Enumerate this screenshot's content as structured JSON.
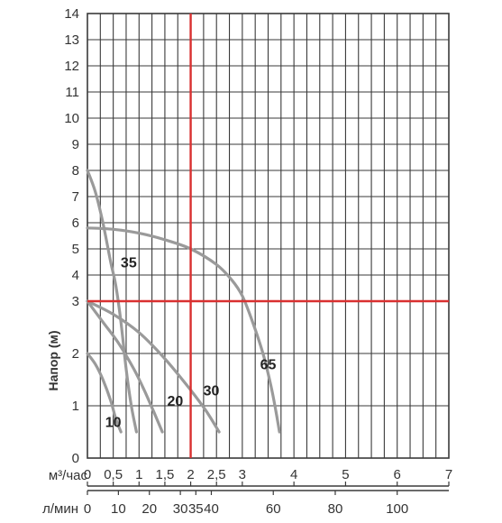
{
  "chart_data": {
    "type": "line",
    "ylabel": "Напор (м)",
    "y_scale": "piecewise: 0–3 m expanded (1 m per division), 3–14 m compressed",
    "y_ticks": [
      0,
      1,
      2,
      3,
      4,
      5,
      6,
      7,
      8,
      9,
      10,
      11,
      12,
      13,
      14
    ],
    "ylim": [
      0,
      14
    ],
    "x_axes": [
      {
        "label": "м³/час",
        "xlim": [
          0,
          7
        ],
        "ticks": [
          {
            "value": 0,
            "text": "0"
          },
          {
            "value": 0.5,
            "text": "0,5"
          },
          {
            "value": 1,
            "text": "1"
          },
          {
            "value": 1.5,
            "text": "1,5"
          },
          {
            "value": 2,
            "text": "2"
          },
          {
            "value": 2.5,
            "text": "2,5"
          },
          {
            "value": 3,
            "text": "3"
          },
          {
            "value": 4,
            "text": "4"
          },
          {
            "value": 5,
            "text": "5"
          },
          {
            "value": 6,
            "text": "6"
          },
          {
            "value": 7,
            "text": "7"
          }
        ]
      },
      {
        "label": "л/мин",
        "xlim": [
          0,
          116.7
        ],
        "ticks": [
          {
            "value": 0,
            "text": "0"
          },
          {
            "value": 10,
            "text": "10"
          },
          {
            "value": 20,
            "text": "20"
          },
          {
            "value": 30,
            "text": "30"
          },
          {
            "value": 35,
            "text": "35"
          },
          {
            "value": 40,
            "text": "40"
          },
          {
            "value": 60,
            "text": "60"
          },
          {
            "value": 80,
            "text": "80"
          },
          {
            "value": 100,
            "text": "100"
          }
        ]
      }
    ],
    "grid": true,
    "series": [
      {
        "name": "10",
        "x": [
          0,
          0.15,
          0.3,
          0.45,
          0.55,
          0.65
        ],
        "y": [
          2.0,
          1.8,
          1.5,
          1.1,
          0.75,
          0.5
        ]
      },
      {
        "name": "35",
        "x": [
          0,
          0.15,
          0.3,
          0.45,
          0.55,
          0.65,
          0.75,
          0.85,
          0.95
        ],
        "y": [
          8.0,
          7.2,
          6.0,
          4.5,
          3.6,
          2.6,
          1.7,
          1.0,
          0.5
        ]
      },
      {
        "name": "20",
        "x": [
          0,
          0.3,
          0.6,
          0.9,
          1.1,
          1.3,
          1.45
        ],
        "y": [
          3.0,
          2.6,
          2.2,
          1.7,
          1.3,
          0.85,
          0.5
        ]
      },
      {
        "name": "30",
        "x": [
          0,
          0.5,
          1.0,
          1.5,
          2.0,
          2.3,
          2.55
        ],
        "y": [
          3.0,
          2.75,
          2.4,
          1.9,
          1.3,
          0.9,
          0.5
        ]
      },
      {
        "name": "65",
        "x": [
          0,
          0.5,
          1.0,
          1.5,
          2.0,
          2.5,
          2.8,
          3.0,
          3.2,
          3.4,
          3.55,
          3.65,
          3.72
        ],
        "y": [
          5.8,
          5.75,
          5.6,
          5.35,
          5.0,
          4.4,
          3.8,
          3.2,
          2.6,
          2.0,
          1.4,
          0.9,
          0.5
        ]
      }
    ],
    "curve_label_positions": [
      {
        "name": "10",
        "x": 0.5,
        "y": 0.7
      },
      {
        "name": "35",
        "x": 0.8,
        "y": 4.5
      },
      {
        "name": "20",
        "x": 1.7,
        "y": 1.1
      },
      {
        "name": "30",
        "x": 2.4,
        "y": 1.3
      },
      {
        "name": "65",
        "x": 3.5,
        "y": 1.8
      }
    ],
    "reference_lines": {
      "vertical_x": 2,
      "horizontal_y": 3
    },
    "colors": {
      "grid": "#3a3a3a",
      "curve": "#9a9a9a",
      "reference": "#d93030",
      "text": "#333333"
    }
  }
}
